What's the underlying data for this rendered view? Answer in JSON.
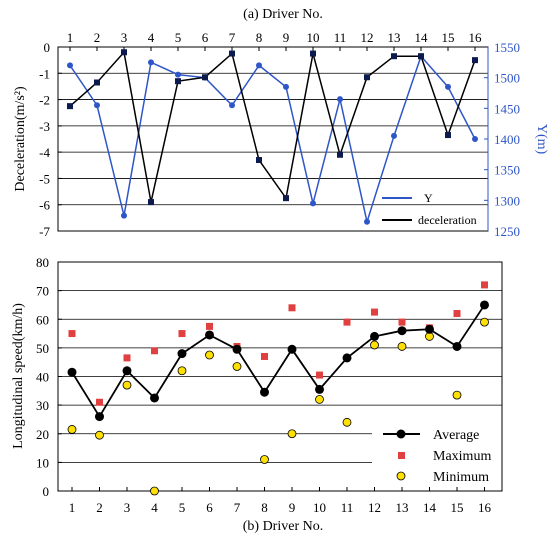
{
  "chart_data": [
    {
      "id": "a",
      "type": "line",
      "title": "(a)  Driver No.",
      "x": [
        1,
        2,
        3,
        4,
        5,
        6,
        7,
        8,
        9,
        10,
        11,
        12,
        13,
        14,
        15,
        16
      ],
      "ylabel_left": "Deceleration(m/s²)",
      "ylabel_right": "Y(m)",
      "ylim_left": [
        -7,
        0
      ],
      "ylim_right": [
        1250,
        1550
      ],
      "yticks_left": [
        0,
        -1,
        -2,
        -3,
        -4,
        -5,
        -6,
        -7
      ],
      "yticks_right": [
        1550,
        1500,
        1450,
        1400,
        1350,
        1300,
        1250
      ],
      "grid": "horizontal",
      "legend_position": "bottom-right",
      "series": [
        {
          "name": "Y",
          "axis": "right",
          "color": "#2f56c8",
          "marker": "circle",
          "values": [
            1520,
            1455,
            1275,
            1525,
            1505,
            1500,
            1455,
            1520,
            1485,
            1295,
            1465,
            1265,
            1405,
            1535,
            1485,
            1400
          ]
        },
        {
          "name": "deceleration",
          "axis": "left",
          "color": "#000000",
          "marker": "square",
          "values": [
            -2.25,
            -1.35,
            -0.2,
            -5.9,
            -1.3,
            -1.15,
            -0.25,
            -4.3,
            -5.75,
            -0.25,
            -4.1,
            -1.15,
            -0.35,
            -0.35,
            -3.35,
            -0.5
          ]
        }
      ]
    },
    {
      "id": "b",
      "type": "line",
      "xlabel": "(b)  Driver No.",
      "ylabel": "Longitudinal speed(km/h)",
      "x": [
        1,
        2,
        3,
        4,
        5,
        6,
        7,
        8,
        9,
        10,
        11,
        12,
        13,
        14,
        15,
        16
      ],
      "ylim": [
        0,
        80
      ],
      "yticks": [
        0,
        10,
        20,
        30,
        40,
        50,
        60,
        70,
        80
      ],
      "grid": "horizontal",
      "legend_position": "bottom-right",
      "series": [
        {
          "name": "Average",
          "style": "line+marker",
          "color": "#000000",
          "marker": "circle",
          "values": [
            41.5,
            26,
            42,
            32.5,
            48,
            54.5,
            49.5,
            34.5,
            49.5,
            35.5,
            46.5,
            54,
            56,
            56.5,
            50.5,
            65
          ]
        },
        {
          "name": "Maximum",
          "style": "marker",
          "color": "#e04040",
          "marker": "square",
          "values": [
            55,
            31,
            46.5,
            49,
            55,
            57.5,
            50.5,
            47,
            64,
            40.5,
            59,
            62.5,
            59,
            57,
            62,
            72
          ]
        },
        {
          "name": "Minimum",
          "style": "marker",
          "color": "#ffe000",
          "marker": "circle",
          "values": [
            21.5,
            19.5,
            37,
            0,
            42,
            47.5,
            43.5,
            11,
            20,
            32,
            24,
            51,
            50.5,
            54,
            33.5,
            59
          ]
        }
      ]
    }
  ]
}
